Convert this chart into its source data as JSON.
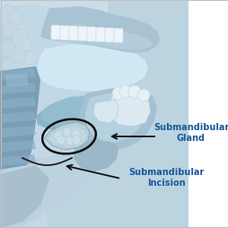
{
  "bg_color": "#ffffff",
  "label1_text": "Submandibular\nGland",
  "label2_text": "Submandibular\nIncision",
  "label_color": "#1a5a9a",
  "arrow_color": "#111111",
  "ellipse_color": "#111111",
  "font_size": 7.0,
  "fig_width": 2.55,
  "fig_height": 2.55,
  "dpi": 100,
  "skin_color": "#b8d4e2",
  "muscle_color": "#8ab0c5",
  "dark_muscle": "#6a90a8",
  "inner_color": "#9fc4d6",
  "cavity_color": "#d5eaf5",
  "tooth_color": "#e8f2f8",
  "gland_color": "#c5dce8",
  "neck_skin": "#c8dce8",
  "bone_color": "#d0e4ee"
}
